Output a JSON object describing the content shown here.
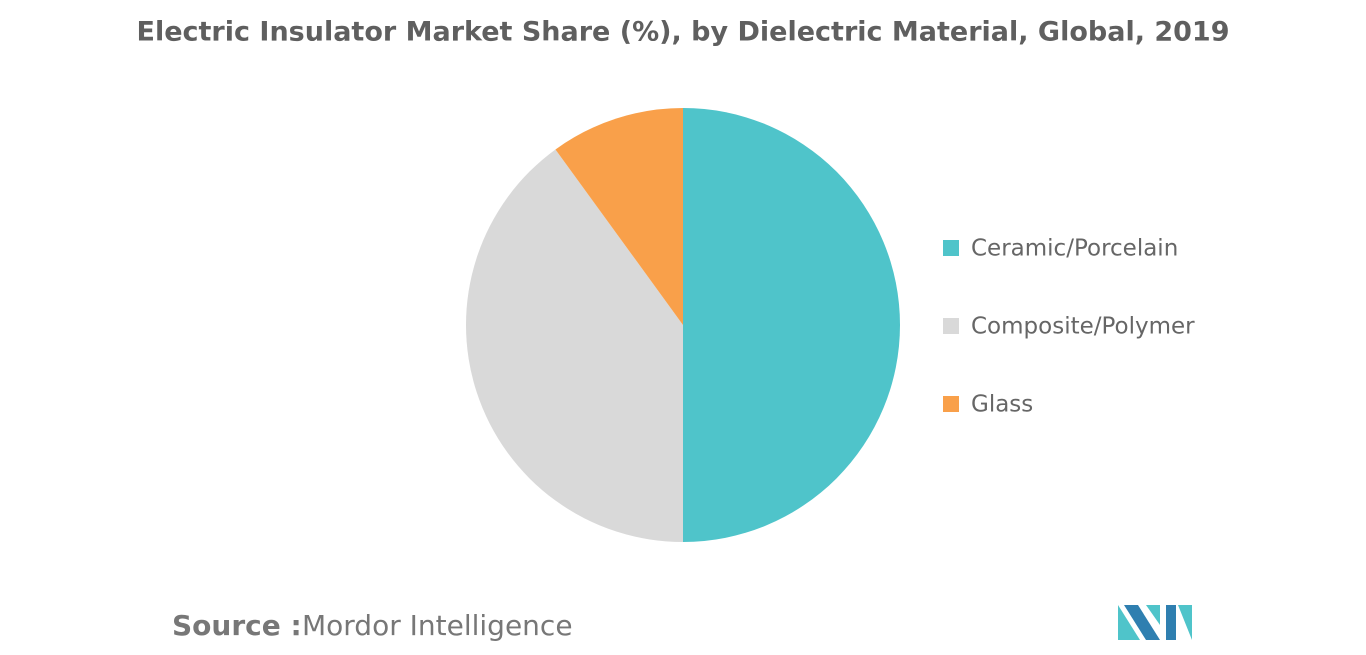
{
  "chart_data": {
    "type": "pie",
    "title": "Electric Insulator Market Share (%), by Dielectric Material, Global, 2019",
    "categories": [
      "Ceramic/Porcelain",
      "Composite/Polymer",
      "Glass"
    ],
    "values": [
      50,
      40,
      10
    ],
    "colors": [
      "#4fc4ca",
      "#d9d9d9",
      "#f9a04a"
    ],
    "legend": "right",
    "source_label": "Source :",
    "source": "Mordor Intelligence"
  }
}
